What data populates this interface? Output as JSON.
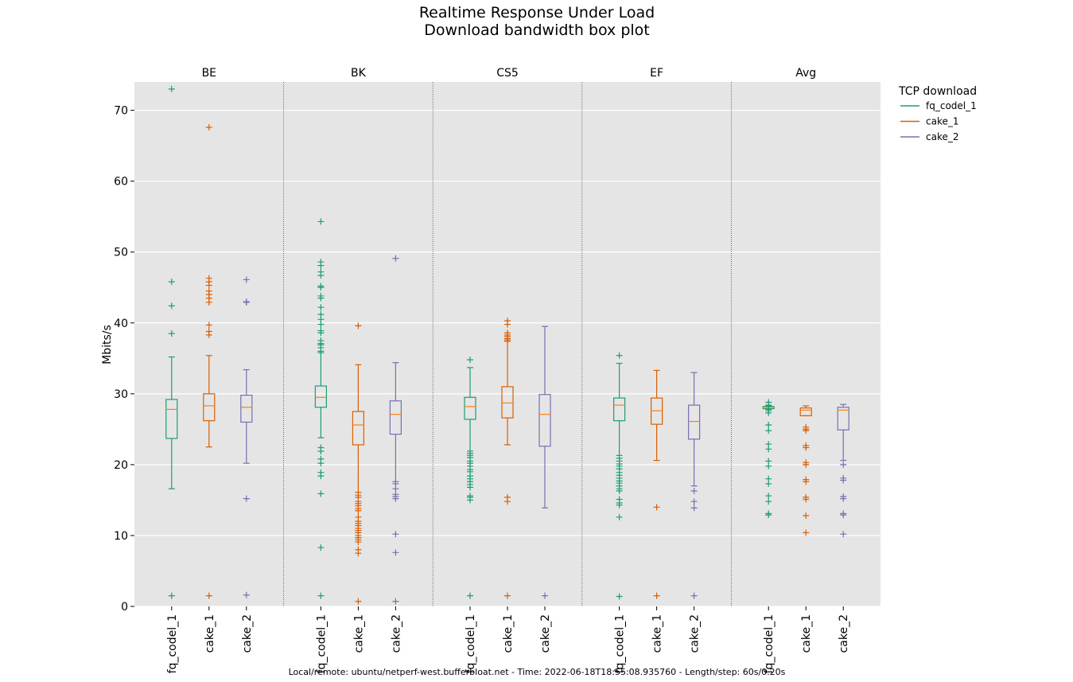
{
  "chart_data": {
    "type": "box",
    "title": "Realtime Response Under Load",
    "subtitle": "Download bandwidth box plot",
    "xlabel": "",
    "ylabel": "Mbits/s",
    "ylim": [
      0,
      74
    ],
    "yticks": [
      0,
      10,
      20,
      30,
      40,
      50,
      60,
      70
    ],
    "grid": true,
    "legend": {
      "title": "TCP download",
      "placement": "right-outside-top",
      "entries": [
        {
          "name": "fq_codel_1",
          "color": "#1b9e77"
        },
        {
          "name": "cake_1",
          "color": "#d95f02"
        },
        {
          "name": "cake_2",
          "color": "#7570b3"
        }
      ]
    },
    "groups": [
      {
        "name": "BE",
        "boxes": [
          {
            "series": "fq_codel_1",
            "whisker_low": 16.6,
            "q1": 23.7,
            "median": 27.8,
            "q3": 29.2,
            "whisker_high": 35.2,
            "outliers": [
              73.0,
              45.8,
              42.4,
              38.5,
              1.5
            ]
          },
          {
            "series": "cake_1",
            "whisker_low": 22.5,
            "q1": 26.2,
            "median": 28.3,
            "q3": 30.0,
            "whisker_high": 35.4,
            "outliers": [
              67.6,
              46.3,
              45.8,
              45.3,
              44.5,
              44.0,
              43.5,
              42.9,
              39.7,
              38.8,
              38.3,
              1.5
            ]
          },
          {
            "series": "cake_2",
            "whisker_low": 20.2,
            "q1": 26.0,
            "median": 28.1,
            "q3": 29.8,
            "whisker_high": 33.4,
            "outliers": [
              46.1,
              43.0,
              42.9,
              15.2,
              1.6
            ]
          }
        ]
      },
      {
        "name": "BK",
        "boxes": [
          {
            "series": "fq_codel_1",
            "whisker_low": 23.8,
            "q1": 28.1,
            "median": 29.5,
            "q3": 31.1,
            "whisker_high": 35.8,
            "outliers": [
              54.3,
              48.6,
              48.1,
              47.2,
              46.7,
              45.2,
              45.0,
              43.8,
              43.5,
              42.2,
              41.2,
              40.5,
              39.8,
              38.9,
              38.6,
              37.5,
              37.1,
              36.9,
              36.5,
              36.0,
              22.4,
              21.9,
              20.8,
              20.2,
              18.9,
              18.4,
              15.9,
              8.3,
              1.5
            ]
          },
          {
            "series": "cake_1",
            "whisker_low": 16.1,
            "q1": 22.8,
            "median": 25.6,
            "q3": 27.5,
            "whisker_high": 34.1,
            "outliers": [
              39.6,
              15.7,
              15.4,
              14.8,
              14.5,
              14.2,
              13.8,
              13.5,
              12.6,
              12.0,
              11.7,
              11.4,
              11.0,
              10.7,
              10.4,
              10.0,
              9.7,
              9.4,
              9.1,
              8.0,
              7.5,
              0.7
            ]
          },
          {
            "series": "cake_2",
            "whisker_low": 17.6,
            "q1": 24.3,
            "median": 27.1,
            "q3": 29.0,
            "whisker_high": 34.4,
            "outliers": [
              49.1,
              17.3,
              16.6,
              15.8,
              15.5,
              15.2,
              10.2,
              7.6,
              0.7
            ]
          }
        ]
      },
      {
        "name": "CS5",
        "boxes": [
          {
            "series": "fq_codel_1",
            "whisker_low": 21.9,
            "q1": 26.4,
            "median": 28.2,
            "q3": 29.5,
            "whisker_high": 33.7,
            "outliers": [
              34.8,
              21.6,
              21.3,
              21.0,
              20.5,
              20.2,
              19.8,
              19.3,
              19.0,
              18.4,
              18.0,
              17.6,
              17.2,
              16.8,
              15.6,
              15.4,
              15.0,
              1.5
            ]
          },
          {
            "series": "cake_1",
            "whisker_low": 22.8,
            "q1": 26.6,
            "median": 28.7,
            "q3": 31.0,
            "whisker_high": 37.4,
            "outliers": [
              40.3,
              39.8,
              38.6,
              38.3,
              38.1,
              37.8,
              37.6,
              15.4,
              14.8,
              1.5
            ]
          },
          {
            "series": "cake_2",
            "whisker_low": 13.9,
            "q1": 22.6,
            "median": 27.1,
            "q3": 29.9,
            "whisker_high": 39.5,
            "outliers": [
              1.5
            ]
          }
        ]
      },
      {
        "name": "EF",
        "boxes": [
          {
            "series": "fq_codel_1",
            "whisker_low": 21.3,
            "q1": 26.2,
            "median": 28.4,
            "q3": 29.4,
            "whisker_high": 34.3,
            "outliers": [
              35.4,
              20.9,
              20.5,
              20.1,
              19.8,
              19.4,
              18.9,
              18.5,
              18.1,
              17.7,
              17.4,
              17.0,
              16.6,
              16.3,
              15.1,
              14.6,
              14.3,
              12.6,
              1.4
            ]
          },
          {
            "series": "cake_1",
            "whisker_low": 20.6,
            "q1": 25.7,
            "median": 27.6,
            "q3": 29.4,
            "whisker_high": 33.3,
            "outliers": [
              14.0,
              1.5
            ]
          },
          {
            "series": "cake_2",
            "whisker_low": 17.0,
            "q1": 23.6,
            "median": 26.1,
            "q3": 28.4,
            "whisker_high": 33.0,
            "outliers": [
              16.3,
              14.8,
              13.9,
              1.5
            ]
          }
        ]
      },
      {
        "name": "Avg",
        "boxes": [
          {
            "series": "fq_codel_1",
            "whisker_low": 27.9,
            "q1": 27.9,
            "median": 28.1,
            "q3": 28.2,
            "whisker_high": 28.3,
            "outliers": [
              28.8,
              28.4,
              27.8,
              27.6,
              27.3,
              25.6,
              24.8,
              22.9,
              22.2,
              20.5,
              19.8,
              18.0,
              17.3,
              15.6,
              14.8,
              13.1,
              12.9
            ]
          },
          {
            "series": "cake_1",
            "whisker_low": 26.9,
            "q1": 26.9,
            "median": 27.7,
            "q3": 28.0,
            "whisker_high": 28.3,
            "outliers": [
              25.3,
              25.0,
              24.8,
              22.7,
              22.4,
              20.3,
              20.0,
              17.9,
              17.6,
              15.4,
              15.1,
              12.8,
              10.4
            ]
          },
          {
            "series": "cake_2",
            "whisker_low": 20.6,
            "q1": 24.9,
            "median": 27.7,
            "q3": 28.1,
            "whisker_high": 28.5,
            "outliers": [
              20.0,
              18.1,
              17.8,
              15.5,
              15.2,
              13.1,
              12.9,
              10.2
            ]
          }
        ]
      }
    ]
  },
  "footer": "Local/remote: ubuntu/netperf-west.bufferbloat.net - Time: 2022-06-18T18:55:08.935760 - Length/step: 60s/0.20s"
}
